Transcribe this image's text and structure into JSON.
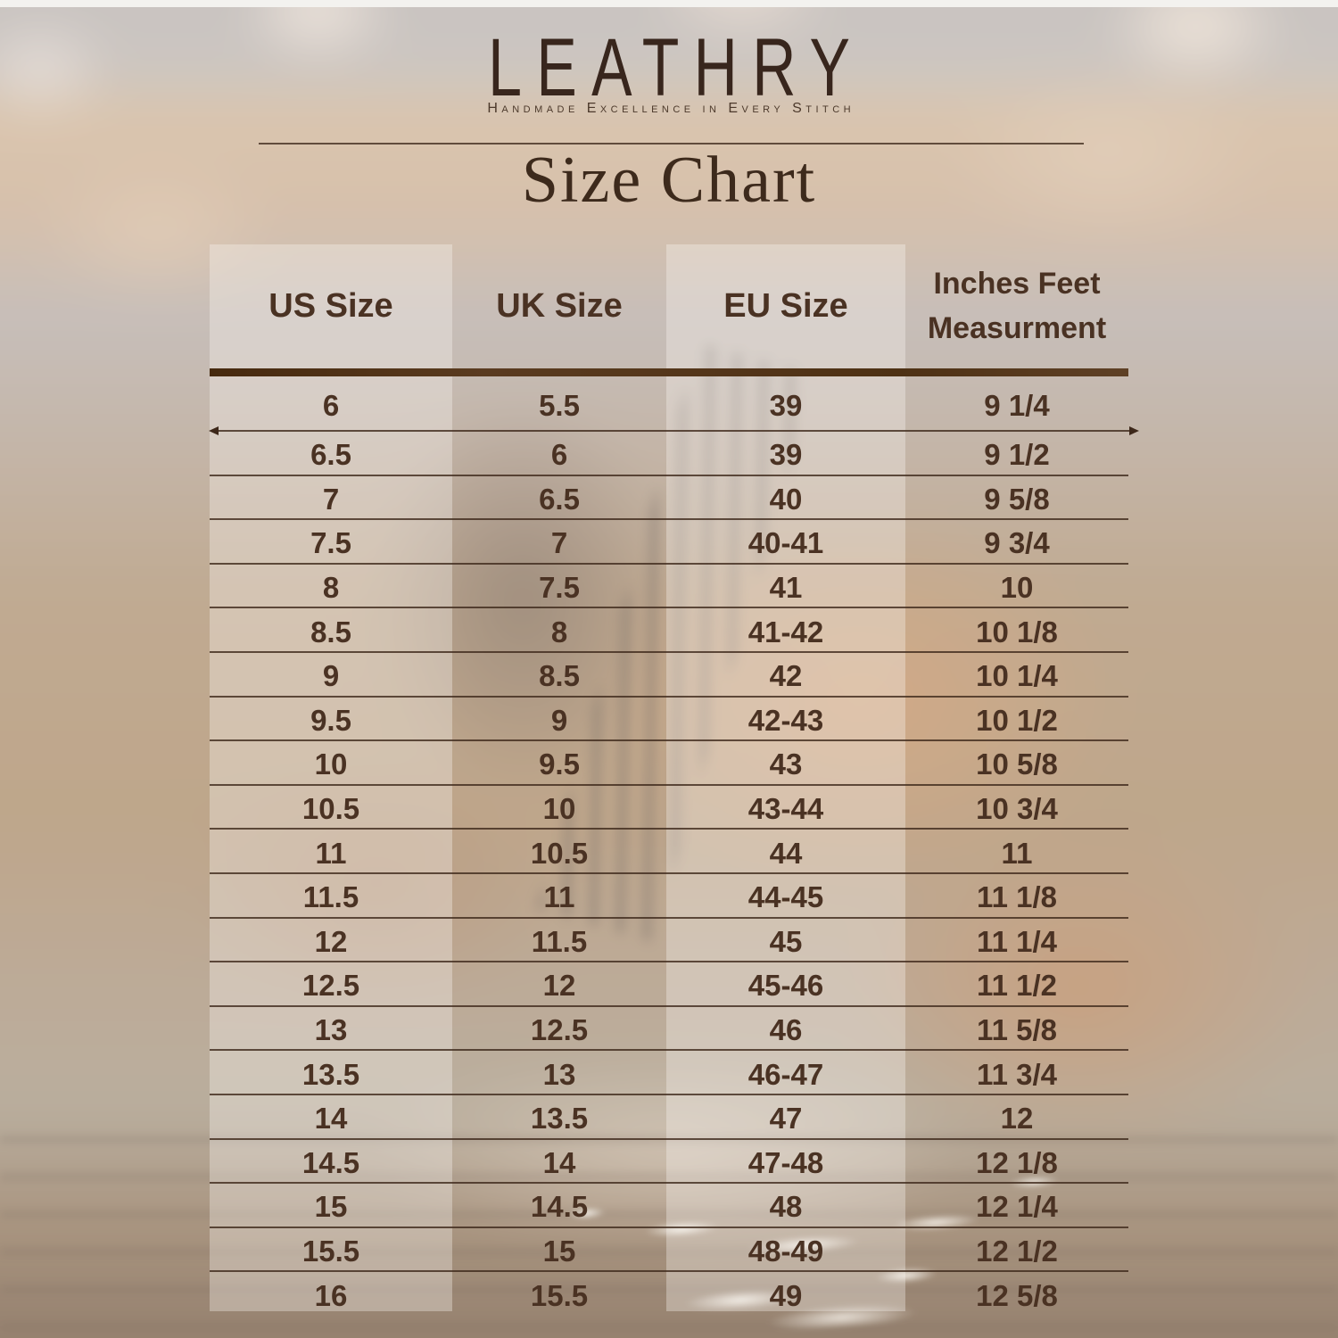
{
  "brand": {
    "logo": "LEATHRY",
    "tagline": "Handmade Excellence in Every Stitch"
  },
  "page": {
    "title": "Size Chart"
  },
  "table": {
    "columns": [
      "US Size",
      "UK Size",
      "EU Size",
      "Inches Feet\nMeasurment"
    ],
    "rows": [
      [
        "6",
        "5.5",
        "39",
        "9 1/4"
      ],
      [
        "6.5",
        "6",
        "39",
        "9 1/2"
      ],
      [
        "7",
        "6.5",
        "40",
        "9 5/8"
      ],
      [
        "7.5",
        "7",
        "40-41",
        "9 3/4"
      ],
      [
        "8",
        "7.5",
        "41",
        "10"
      ],
      [
        "8.5",
        "8",
        "41-42",
        "10 1/8"
      ],
      [
        "9",
        "8.5",
        "42",
        "10 1/4"
      ],
      [
        "9.5",
        "9",
        "42-43",
        "10 1/2"
      ],
      [
        "10",
        "9.5",
        "43",
        "10 5/8"
      ],
      [
        "10.5",
        "10",
        "43-44",
        "10 3/4"
      ],
      [
        "11",
        "10.5",
        "44",
        "11"
      ],
      [
        "11.5",
        "11",
        "44-45",
        "11 1/8"
      ],
      [
        "12",
        "11.5",
        "45",
        "11 1/4"
      ],
      [
        "12.5",
        "12",
        "45-46",
        "11 1/2"
      ],
      [
        "13",
        "12.5",
        "46",
        "11 5/8"
      ],
      [
        "13.5",
        "13",
        "46-47",
        "11 3/4"
      ],
      [
        "14",
        "13.5",
        "47",
        "12"
      ],
      [
        "14.5",
        "14",
        "47-48",
        "12 1/8"
      ],
      [
        "15",
        "14.5",
        "48",
        "12 1/4"
      ],
      [
        "15.5",
        "15",
        "48-49",
        "12 1/2"
      ],
      [
        "16",
        "15.5",
        "49",
        "12 5/8"
      ]
    ]
  },
  "colors": {
    "logo_brown": "#38261d",
    "tagline_brown": "#4c392b",
    "title_brown": "#3d2a1c",
    "text_brown": "#4a3223",
    "row_line": "rgba(61,40,26,0.8)",
    "row_line_solid": "#3d281a"
  }
}
